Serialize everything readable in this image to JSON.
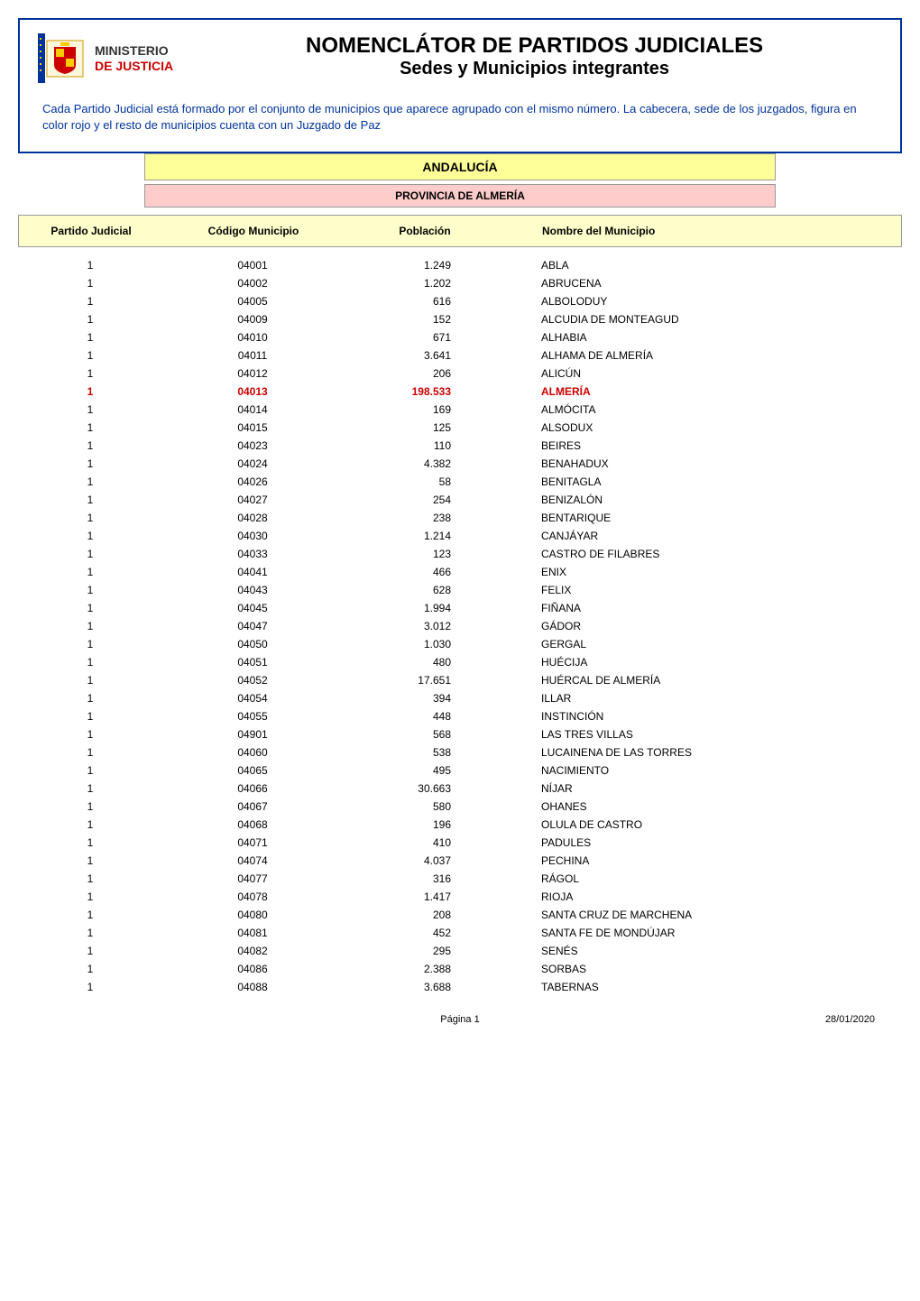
{
  "header": {
    "ministry_line1": "MINISTERIO",
    "ministry_line2": "DE JUSTICIA",
    "title": "NOMENCLÁTOR DE PARTIDOS JUDICIALES",
    "subtitle": "Sedes y Municipios integrantes",
    "intro": "Cada Partido Judicial está formado por el conjunto de municipios que aparece agrupado con el mismo número. La cabecera, sede de los juzgados, figura en color rojo y el resto de municipios cuenta con un Juzgado de Paz"
  },
  "region": "ANDALUCÍA",
  "province": "PROVINCIA DE ALMERÍA",
  "columns": {
    "partido": "Partido Judicial",
    "codigo": "Código Municipio",
    "poblacion": "Población",
    "nombre": "Nombre del Municipio"
  },
  "colors": {
    "frame_border": "#003399",
    "intro_text": "#003399",
    "region_bg": "#ffff99",
    "province_bg": "#ffcccc",
    "header_bg": "#ffffcc",
    "cabecera_text": "#cc0000",
    "ministry_accent": "#cc0000",
    "bar_border": "#999999"
  },
  "typography": {
    "title_fontsize": 24,
    "subtitle_fontsize": 20,
    "intro_fontsize": 13,
    "header_fontsize": 12,
    "row_fontsize": 12,
    "footer_fontsize": 11
  },
  "rows": [
    {
      "partido": "1",
      "codigo": "04001",
      "poblacion": "1.249",
      "nombre": "ABLA",
      "cabecera": false
    },
    {
      "partido": "1",
      "codigo": "04002",
      "poblacion": "1.202",
      "nombre": "ABRUCENA",
      "cabecera": false
    },
    {
      "partido": "1",
      "codigo": "04005",
      "poblacion": "616",
      "nombre": "ALBOLODUY",
      "cabecera": false
    },
    {
      "partido": "1",
      "codigo": "04009",
      "poblacion": "152",
      "nombre": "ALCUDIA DE MONTEAGUD",
      "cabecera": false
    },
    {
      "partido": "1",
      "codigo": "04010",
      "poblacion": "671",
      "nombre": "ALHABIA",
      "cabecera": false
    },
    {
      "partido": "1",
      "codigo": "04011",
      "poblacion": "3.641",
      "nombre": "ALHAMA DE ALMERÍA",
      "cabecera": false
    },
    {
      "partido": "1",
      "codigo": "04012",
      "poblacion": "206",
      "nombre": "ALICÚN",
      "cabecera": false
    },
    {
      "partido": "1",
      "codigo": "04013",
      "poblacion": "198.533",
      "nombre": "ALMERÍA",
      "cabecera": true
    },
    {
      "partido": "1",
      "codigo": "04014",
      "poblacion": "169",
      "nombre": "ALMÓCITA",
      "cabecera": false
    },
    {
      "partido": "1",
      "codigo": "04015",
      "poblacion": "125",
      "nombre": "ALSODUX",
      "cabecera": false
    },
    {
      "partido": "1",
      "codigo": "04023",
      "poblacion": "110",
      "nombre": "BEIRES",
      "cabecera": false
    },
    {
      "partido": "1",
      "codigo": "04024",
      "poblacion": "4.382",
      "nombre": "BENAHADUX",
      "cabecera": false
    },
    {
      "partido": "1",
      "codigo": "04026",
      "poblacion": "58",
      "nombre": "BENITAGLA",
      "cabecera": false
    },
    {
      "partido": "1",
      "codigo": "04027",
      "poblacion": "254",
      "nombre": "BENIZALÓN",
      "cabecera": false
    },
    {
      "partido": "1",
      "codigo": "04028",
      "poblacion": "238",
      "nombre": "BENTARIQUE",
      "cabecera": false
    },
    {
      "partido": "1",
      "codigo": "04030",
      "poblacion": "1.214",
      "nombre": "CANJÁYAR",
      "cabecera": false
    },
    {
      "partido": "1",
      "codigo": "04033",
      "poblacion": "123",
      "nombre": "CASTRO DE FILABRES",
      "cabecera": false
    },
    {
      "partido": "1",
      "codigo": "04041",
      "poblacion": "466",
      "nombre": "ENIX",
      "cabecera": false
    },
    {
      "partido": "1",
      "codigo": "04043",
      "poblacion": "628",
      "nombre": "FELIX",
      "cabecera": false
    },
    {
      "partido": "1",
      "codigo": "04045",
      "poblacion": "1.994",
      "nombre": "FIÑANA",
      "cabecera": false
    },
    {
      "partido": "1",
      "codigo": "04047",
      "poblacion": "3.012",
      "nombre": "GÁDOR",
      "cabecera": false
    },
    {
      "partido": "1",
      "codigo": "04050",
      "poblacion": "1.030",
      "nombre": "GERGAL",
      "cabecera": false
    },
    {
      "partido": "1",
      "codigo": "04051",
      "poblacion": "480",
      "nombre": "HUÉCIJA",
      "cabecera": false
    },
    {
      "partido": "1",
      "codigo": "04052",
      "poblacion": "17.651",
      "nombre": "HUÉRCAL DE ALMERÍA",
      "cabecera": false
    },
    {
      "partido": "1",
      "codigo": "04054",
      "poblacion": "394",
      "nombre": "ILLAR",
      "cabecera": false
    },
    {
      "partido": "1",
      "codigo": "04055",
      "poblacion": "448",
      "nombre": "INSTINCIÓN",
      "cabecera": false
    },
    {
      "partido": "1",
      "codigo": "04901",
      "poblacion": "568",
      "nombre": "LAS TRES VILLAS",
      "cabecera": false
    },
    {
      "partido": "1",
      "codigo": "04060",
      "poblacion": "538",
      "nombre": "LUCAINENA DE LAS TORRES",
      "cabecera": false
    },
    {
      "partido": "1",
      "codigo": "04065",
      "poblacion": "495",
      "nombre": "NACIMIENTO",
      "cabecera": false
    },
    {
      "partido": "1",
      "codigo": "04066",
      "poblacion": "30.663",
      "nombre": "NÍJAR",
      "cabecera": false
    },
    {
      "partido": "1",
      "codigo": "04067",
      "poblacion": "580",
      "nombre": "OHANES",
      "cabecera": false
    },
    {
      "partido": "1",
      "codigo": "04068",
      "poblacion": "196",
      "nombre": "OLULA DE CASTRO",
      "cabecera": false
    },
    {
      "partido": "1",
      "codigo": "04071",
      "poblacion": "410",
      "nombre": "PADULES",
      "cabecera": false
    },
    {
      "partido": "1",
      "codigo": "04074",
      "poblacion": "4.037",
      "nombre": "PECHINA",
      "cabecera": false
    },
    {
      "partido": "1",
      "codigo": "04077",
      "poblacion": "316",
      "nombre": "RÁGOL",
      "cabecera": false
    },
    {
      "partido": "1",
      "codigo": "04078",
      "poblacion": "1.417",
      "nombre": "RIOJA",
      "cabecera": false
    },
    {
      "partido": "1",
      "codigo": "04080",
      "poblacion": "208",
      "nombre": "SANTA CRUZ DE MARCHENA",
      "cabecera": false
    },
    {
      "partido": "1",
      "codigo": "04081",
      "poblacion": "452",
      "nombre": "SANTA FE DE MONDÚJAR",
      "cabecera": false
    },
    {
      "partido": "1",
      "codigo": "04082",
      "poblacion": "295",
      "nombre": "SENÉS",
      "cabecera": false
    },
    {
      "partido": "1",
      "codigo": "04086",
      "poblacion": "2.388",
      "nombre": "SORBAS",
      "cabecera": false
    },
    {
      "partido": "1",
      "codigo": "04088",
      "poblacion": "3.688",
      "nombre": "TABERNAS",
      "cabecera": false
    }
  ],
  "footer": {
    "page": "Página 1",
    "date": "28/01/2020"
  }
}
